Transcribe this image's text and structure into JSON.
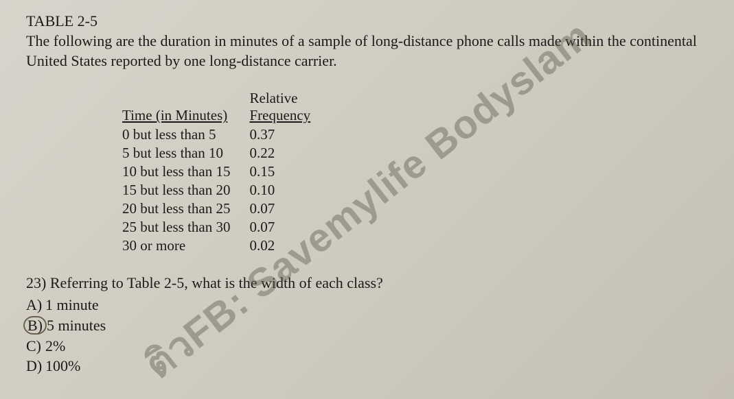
{
  "title": "TABLE 2-5",
  "intro": "The following are the duration in minutes of a sample of long-distance phone calls made within the continental United States reported by one long-distance carrier.",
  "table": {
    "header_time": "Time (in Minutes)",
    "header_freq_top": "Relative",
    "header_freq_bottom": "Frequency",
    "rows": [
      {
        "time": "0 but less than 5",
        "freq": "0.37"
      },
      {
        "time": "5 but less than 10",
        "freq": "0.22"
      },
      {
        "time": "10 but less than 15",
        "freq": "0.15"
      },
      {
        "time": "15 but less than 20",
        "freq": "0.10"
      },
      {
        "time": "20 but less than 25",
        "freq": "0.07"
      },
      {
        "time": "25 but less than 30",
        "freq": "0.07"
      },
      {
        "time": "30 or more",
        "freq": "0.02"
      }
    ]
  },
  "question": {
    "number": "23)",
    "text": "Referring to Table 2-5, what is the width of each class?",
    "options": {
      "a_letter": "A)",
      "a_text": "1 minute",
      "b_letter": "B)",
      "b_text": "5 minutes",
      "c_letter": "C)",
      "c_text": "2%",
      "d_letter": "D)",
      "d_text": "100%"
    },
    "selected": "B"
  },
  "watermark": "ติวFB: Savemylife Bodyslam"
}
